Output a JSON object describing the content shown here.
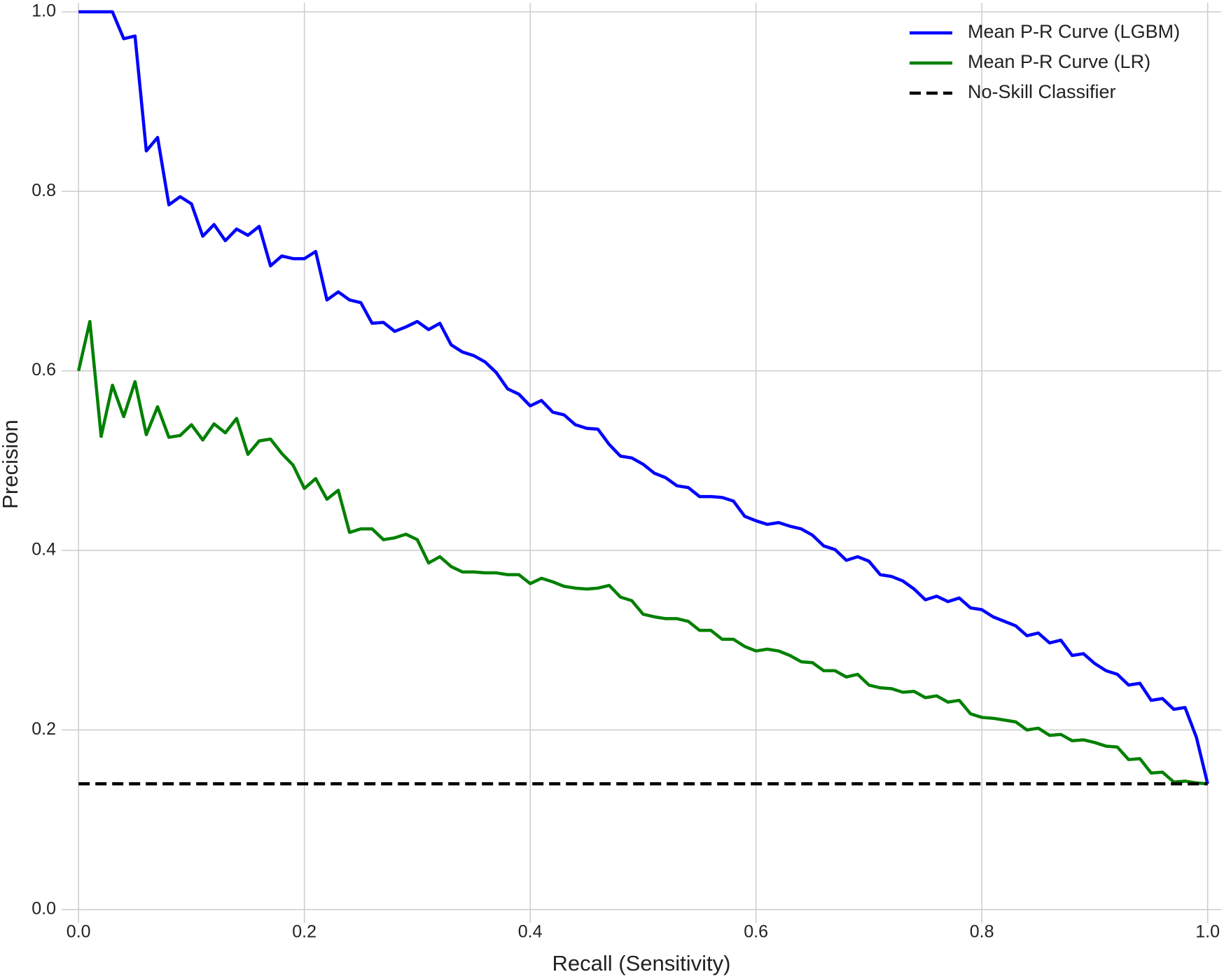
{
  "chart_data": {
    "type": "line",
    "x_label": "Recall (Sensitivity)",
    "y_label": "Precision",
    "x": [
      0,
      0.01,
      0.02,
      0.03,
      0.04,
      0.05,
      0.06,
      0.07,
      0.08,
      0.09,
      0.1,
      0.11,
      0.12,
      0.13,
      0.14,
      0.15,
      0.16,
      0.17,
      0.18,
      0.19,
      0.2,
      0.21,
      0.22,
      0.23,
      0.24,
      0.25,
      0.26,
      0.27,
      0.28,
      0.29,
      0.3,
      0.31,
      0.32,
      0.33,
      0.34,
      0.35,
      0.36,
      0.37,
      0.38,
      0.39,
      0.4,
      0.41,
      0.42,
      0.43,
      0.44,
      0.45,
      0.46,
      0.47,
      0.48,
      0.49,
      0.5,
      0.51,
      0.52,
      0.53,
      0.54,
      0.55,
      0.56,
      0.57,
      0.58,
      0.59,
      0.6,
      0.61,
      0.62,
      0.63,
      0.64,
      0.65,
      0.66,
      0.67,
      0.68,
      0.69,
      0.7,
      0.71,
      0.72,
      0.73,
      0.74,
      0.75,
      0.76,
      0.77,
      0.78,
      0.79,
      0.8,
      0.81,
      0.82,
      0.83,
      0.84,
      0.85,
      0.86,
      0.87,
      0.88,
      0.89,
      0.9,
      0.91,
      0.92,
      0.93,
      0.94,
      0.95,
      0.96,
      0.97,
      0.98,
      0.99,
      1
    ],
    "series": [
      {
        "name": "Mean P-R Curve (LGBM)",
        "color": "#0000ff",
        "values": [
          1.0,
          1.0,
          1.0,
          1.0,
          0.97,
          0.973,
          0.845,
          0.86,
          0.785,
          0.794,
          0.786,
          0.75,
          0.763,
          0.745,
          0.758,
          0.751,
          0.761,
          0.717,
          0.728,
          0.725,
          0.725,
          0.733,
          0.679,
          0.688,
          0.679,
          0.676,
          0.653,
          0.654,
          0.644,
          0.649,
          0.655,
          0.646,
          0.653,
          0.629,
          0.621,
          0.617,
          0.61,
          0.598,
          0.58,
          0.574,
          0.561,
          0.567,
          0.554,
          0.551,
          0.54,
          0.536,
          0.535,
          0.518,
          0.505,
          0.503,
          0.496,
          0.486,
          0.481,
          0.472,
          0.47,
          0.46,
          0.46,
          0.459,
          0.455,
          0.438,
          0.433,
          0.429,
          0.431,
          0.427,
          0.424,
          0.417,
          0.405,
          0.401,
          0.389,
          0.393,
          0.388,
          0.373,
          0.371,
          0.366,
          0.357,
          0.345,
          0.349,
          0.343,
          0.347,
          0.336,
          0.334,
          0.326,
          0.321,
          0.316,
          0.305,
          0.308,
          0.297,
          0.3,
          0.283,
          0.285,
          0.274,
          0.266,
          0.262,
          0.25,
          0.252,
          0.233,
          0.235,
          0.223,
          0.225,
          0.192,
          0.14
        ]
      },
      {
        "name": "Mean P-R Curve (LR)",
        "color": "#008000",
        "values": [
          0.6,
          0.655,
          0.527,
          0.584,
          0.549,
          0.588,
          0.529,
          0.56,
          0.526,
          0.528,
          0.54,
          0.523,
          0.541,
          0.531,
          0.547,
          0.507,
          0.522,
          0.524,
          0.508,
          0.495,
          0.469,
          0.48,
          0.457,
          0.467,
          0.42,
          0.424,
          0.424,
          0.412,
          0.414,
          0.418,
          0.412,
          0.386,
          0.393,
          0.382,
          0.376,
          0.376,
          0.375,
          0.375,
          0.373,
          0.373,
          0.363,
          0.369,
          0.365,
          0.36,
          0.358,
          0.357,
          0.358,
          0.361,
          0.348,
          0.344,
          0.329,
          0.326,
          0.324,
          0.324,
          0.321,
          0.311,
          0.311,
          0.301,
          0.301,
          0.293,
          0.288,
          0.29,
          0.288,
          0.283,
          0.276,
          0.275,
          0.266,
          0.266,
          0.259,
          0.262,
          0.25,
          0.247,
          0.246,
          0.242,
          0.243,
          0.236,
          0.238,
          0.231,
          0.233,
          0.218,
          0.214,
          0.213,
          0.211,
          0.209,
          0.2,
          0.202,
          0.194,
          0.195,
          0.188,
          0.189,
          0.186,
          0.182,
          0.181,
          0.167,
          0.168,
          0.152,
          0.153,
          0.142,
          0.143,
          0.141,
          0.14
        ]
      },
      {
        "name": "No-Skill Classifier",
        "color": "#000000",
        "dashed": true,
        "x": [
          0,
          1
        ],
        "values": [
          0.14,
          0.14
        ]
      }
    ],
    "xlim": [
      -0.015,
      1.012
    ],
    "ylim": [
      -0.015,
      1.01
    ],
    "xticks": [
      {
        "value": 0,
        "label": "0.0"
      },
      0.2,
      0.4,
      0.6,
      0.8,
      {
        "value": 1,
        "label": "1.0"
      }
    ],
    "yticks": [
      {
        "value": 0,
        "label": "0.0"
      },
      0.2,
      0.4,
      0.6,
      0.8,
      {
        "value": 1,
        "label": "1.0"
      }
    ],
    "grid": true,
    "legend": "upper right"
  }
}
